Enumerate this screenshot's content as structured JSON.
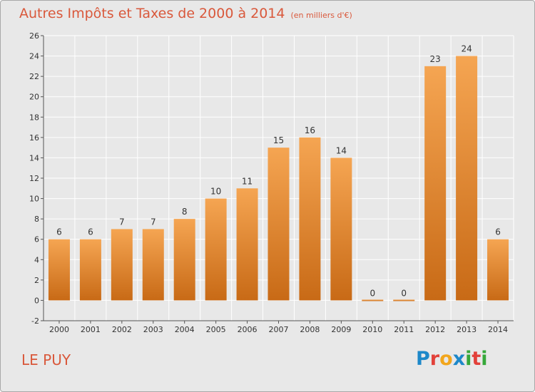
{
  "title": "Autres Impôts et Taxes de 2000 à 2014",
  "unit": "(en milliers d'€)",
  "location": "LE PUY",
  "logo": {
    "letters": [
      "P",
      "r",
      "o",
      "x",
      "i",
      "t",
      "i"
    ],
    "colors": [
      "#1d88c9",
      "#e2413a",
      "#f2a61c",
      "#1d88c9",
      "#36a83a",
      "#e2413a",
      "#36a83a"
    ]
  },
  "colors": {
    "accent": "#d9583b",
    "bar_light": "#f5a552",
    "bar_dark": "#c86a16",
    "background": "#e8e8e8",
    "grid": "#ffffff"
  },
  "chart_data": {
    "type": "bar",
    "categories": [
      "2000",
      "2001",
      "2002",
      "2003",
      "2004",
      "2005",
      "2006",
      "2007",
      "2008",
      "2009",
      "2010",
      "2011",
      "2012",
      "2013",
      "2014"
    ],
    "values": [
      6,
      6,
      7,
      7,
      8,
      10,
      11,
      15,
      16,
      14,
      0,
      0,
      23,
      24,
      6
    ],
    "yticks": [
      -2,
      0,
      2,
      4,
      6,
      8,
      10,
      12,
      14,
      16,
      18,
      20,
      22,
      24,
      26
    ],
    "ylim": [
      -2,
      26
    ],
    "grid": true,
    "data_labels": true
  }
}
